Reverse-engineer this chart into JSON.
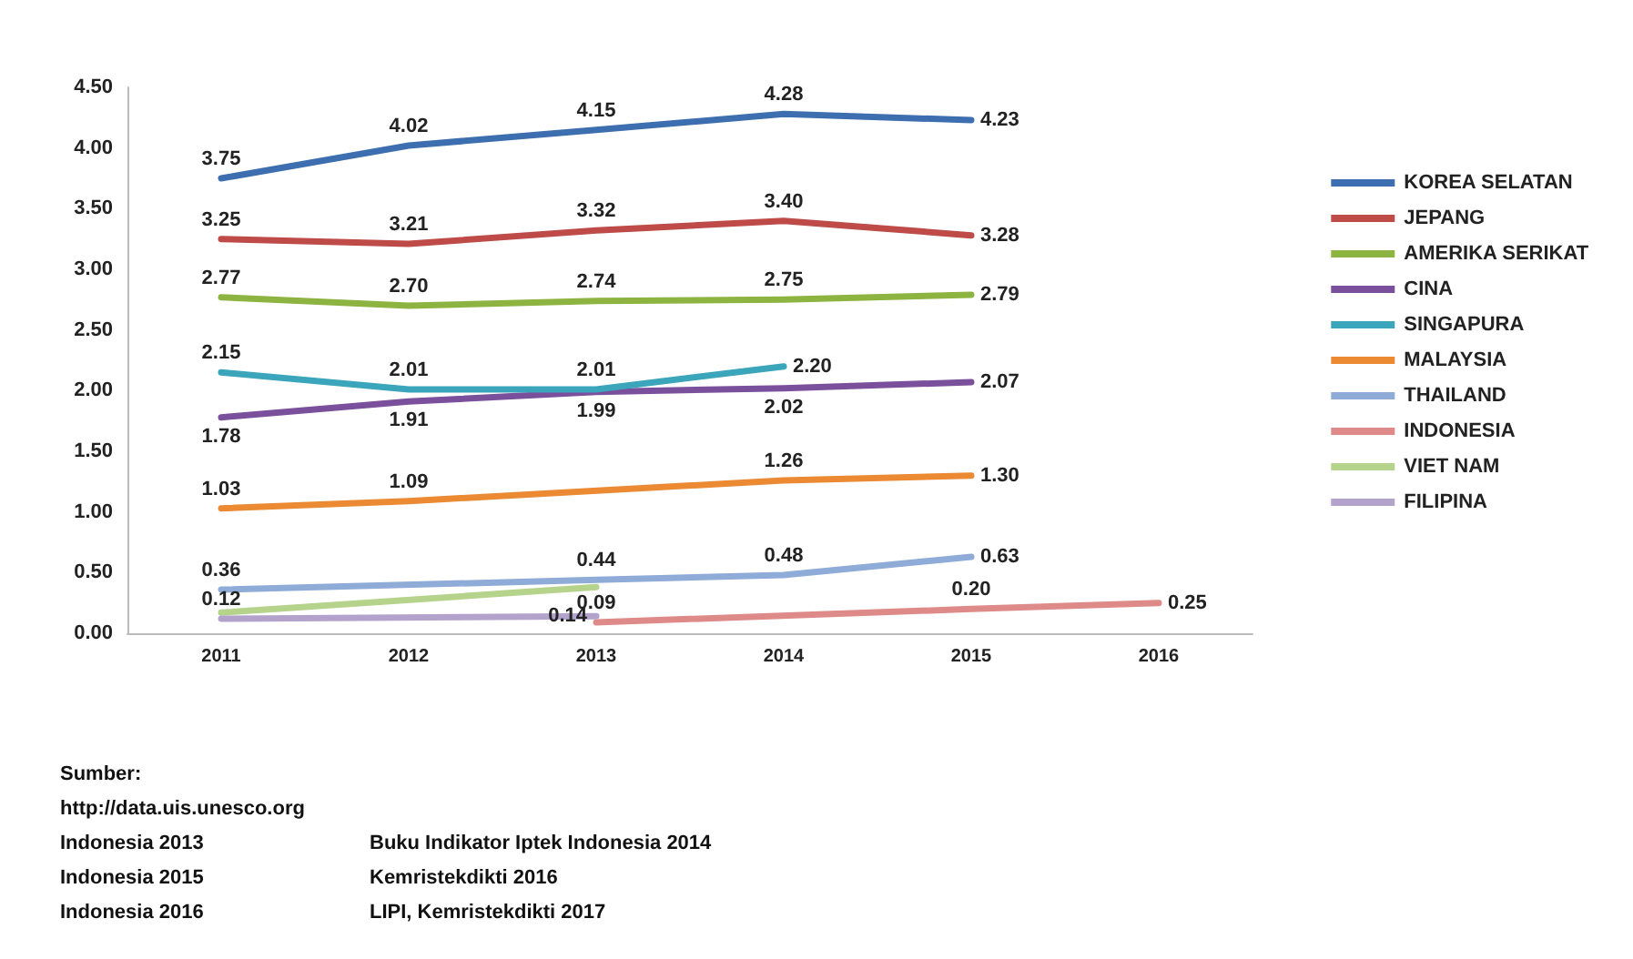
{
  "chart_data": {
    "type": "line",
    "categories": [
      "2011",
      "2012",
      "2013",
      "2014",
      "2015",
      "2016"
    ],
    "ylim": [
      0,
      4.5
    ],
    "yticks": [
      {
        "value": 0,
        "label": "0.00"
      },
      {
        "value": 0.5,
        "label": "0.50"
      },
      {
        "value": 1,
        "label": "1.00"
      },
      {
        "value": 1.5,
        "label": "1.50"
      },
      {
        "value": 2,
        "label": "2.00"
      },
      {
        "value": 2.5,
        "label": "2.50"
      },
      {
        "value": 3,
        "label": "3.00"
      },
      {
        "value": 3.5,
        "label": "3.50"
      },
      {
        "value": 4,
        "label": "4.00"
      },
      {
        "value": 4.5,
        "label": "4.50"
      }
    ],
    "grid": false,
    "legend": "right",
    "marker": "none",
    "line_style": "solid",
    "series": [
      {
        "name": "KOREA SELATAN",
        "color": "#3d6fb0",
        "values": [
          3.75,
          4.02,
          4.15,
          4.28,
          4.23,
          null
        ],
        "value_labels": [
          "3.75",
          "4.02",
          "4.15",
          "4.28",
          "4.23",
          null
        ]
      },
      {
        "name": "JEPANG",
        "color": "#be4b48",
        "values": [
          3.25,
          3.21,
          3.32,
          3.4,
          3.28,
          null
        ],
        "value_labels": [
          "3.25",
          "3.21",
          "3.32",
          "3.40",
          "3.28",
          null
        ]
      },
      {
        "name": "AMERIKA SERIKAT",
        "color": "#8db441",
        "values": [
          2.77,
          2.7,
          2.74,
          2.75,
          2.79,
          null
        ],
        "value_labels": [
          "2.77",
          "2.70",
          "2.74",
          "2.75",
          "2.79",
          null
        ]
      },
      {
        "name": "CINA",
        "color": "#7a4f9c",
        "values": [
          1.78,
          1.91,
          1.99,
          2.02,
          2.07,
          null
        ],
        "value_labels": [
          "1.78",
          "1.91",
          "1.99",
          "2.02",
          "2.07",
          null
        ]
      },
      {
        "name": "SINGAPURA",
        "color": "#3aa5bb",
        "values": [
          2.15,
          2.01,
          2.01,
          2.2,
          null,
          null
        ],
        "value_labels": [
          "2.15",
          "2.01",
          "2.01",
          "2.20",
          null,
          null
        ]
      },
      {
        "name": "MALAYSIA",
        "color": "#eb8a33",
        "values": [
          1.03,
          1.09,
          null,
          1.26,
          1.3,
          null
        ],
        "value_labels": [
          "1.03",
          "1.09",
          null,
          "1.26",
          "1.30",
          null
        ]
      },
      {
        "name": "THAILAND",
        "color": "#8fabd8",
        "values": [
          0.36,
          null,
          0.44,
          0.48,
          0.63,
          null
        ],
        "value_labels": [
          "0.36",
          null,
          "0.44",
          "0.48",
          "0.63",
          null
        ]
      },
      {
        "name": "INDONESIA",
        "color": "#de8a88",
        "values": [
          null,
          null,
          0.09,
          null,
          0.2,
          0.25
        ],
        "value_labels": [
          null,
          null,
          "0.09",
          null,
          "0.20",
          "0.25"
        ]
      },
      {
        "name": "VIET NAM",
        "color": "#b6d38c",
        "values": [
          0.17,
          null,
          0.38,
          null,
          null,
          null
        ],
        "value_labels": [
          null,
          null,
          null,
          null,
          null,
          null
        ]
      },
      {
        "name": "FILIPINA",
        "color": "#b3a3cc",
        "values": [
          0.12,
          null,
          0.14,
          null,
          null,
          null
        ],
        "value_labels": [
          "0.12",
          null,
          "0.14",
          null,
          null,
          null
        ]
      }
    ],
    "annotations": [
      "Sumber:",
      "http://data.uis.unesco.org",
      "Indonesia 2013",
      "Buku Indikator Iptek Indonesia 2014",
      "Indonesia 2015",
      "Kemristekdikti 2016",
      "Indonesia 2016",
      "LIPI, Kemristekdikti 2017"
    ]
  }
}
